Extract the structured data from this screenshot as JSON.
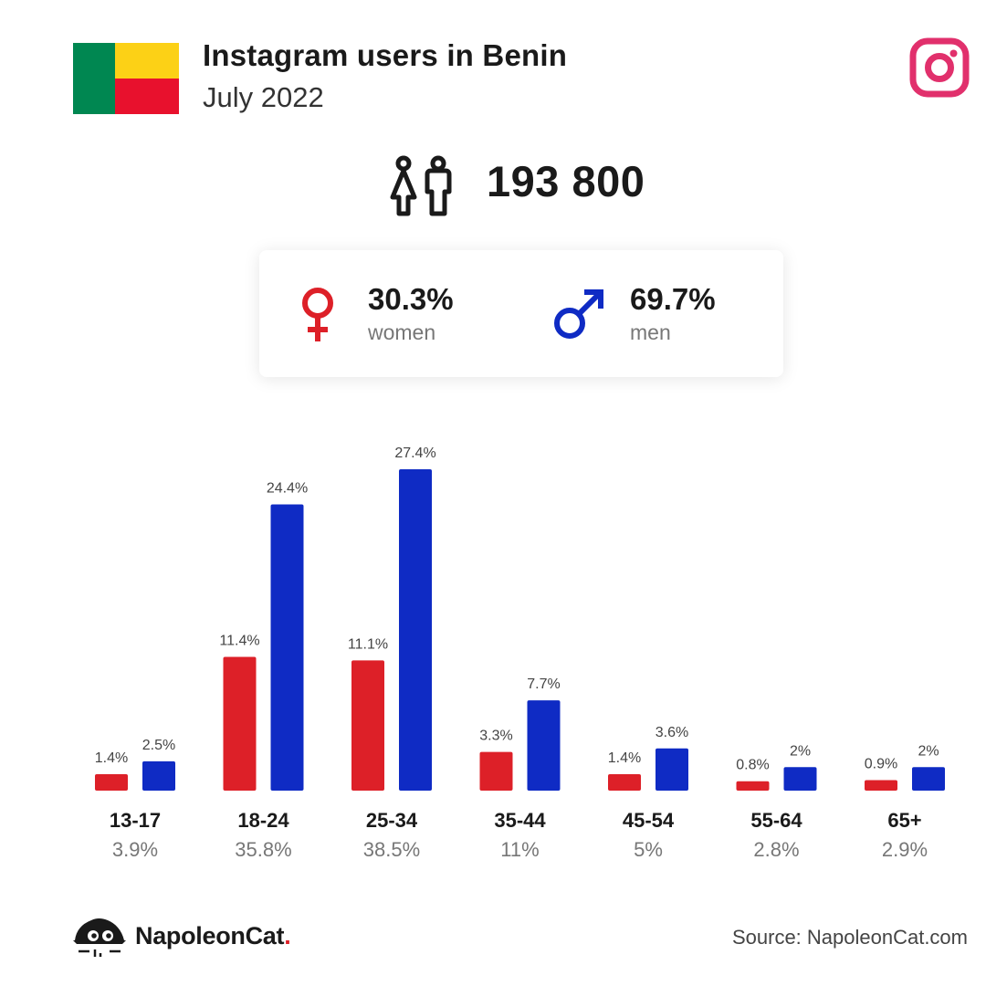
{
  "header": {
    "title": "Instagram users in Benin",
    "subtitle": "July 2022"
  },
  "colors": {
    "women": "#dd2028",
    "men": "#0f2bc4",
    "flag_green": "#008751",
    "flag_yellow": "#fcd116",
    "flag_red": "#e8112d",
    "instagram": "#e1306c"
  },
  "icons": {
    "flag": "benin-flag-icon",
    "brand": "instagram-icon",
    "people": "people-icon",
    "women": "female-symbol-icon",
    "men": "male-symbol-icon",
    "footer": "napoleoncat-logo-icon"
  },
  "total_users": "193 800",
  "gender": {
    "women": {
      "value": "30.3%",
      "label": "women"
    },
    "men": {
      "value": "69.7%",
      "label": "men"
    }
  },
  "chart_data": {
    "type": "bar",
    "categories": [
      "13-17",
      "18-24",
      "25-34",
      "35-44",
      "45-54",
      "55-64",
      "65+"
    ],
    "category_totals": [
      "3.9%",
      "35.8%",
      "38.5%",
      "11%",
      "5%",
      "2.8%",
      "2.9%"
    ],
    "series": [
      {
        "key": "women",
        "values": [
          1.4,
          11.4,
          11.1,
          3.3,
          1.4,
          0.8,
          0.9
        ],
        "labels": [
          "1.4%",
          "11.4%",
          "11.1%",
          "3.3%",
          "1.4%",
          "0.8%",
          "0.9%"
        ]
      },
      {
        "key": "men",
        "values": [
          2.5,
          24.4,
          27.4,
          7.7,
          3.6,
          2,
          2
        ],
        "labels": [
          "2.5%",
          "24.4%",
          "27.4%",
          "7.7%",
          "3.6%",
          "2%",
          "2%"
        ]
      }
    ],
    "ylim": [
      0,
      27.4
    ],
    "grid": false
  },
  "footer": {
    "brand": "NapoleonCat",
    "brand_dot": ".",
    "source": "Source: NapoleonCat.com"
  }
}
